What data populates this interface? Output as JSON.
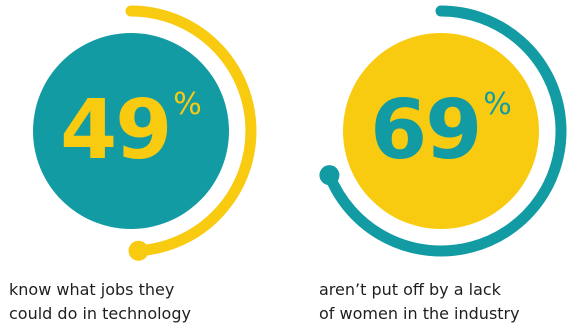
{
  "chart_data": {
    "type": "pie",
    "items": [
      {
        "value": 49,
        "number": "49",
        "unit": "%",
        "caption_line1": "know what jobs they",
        "caption_line2": "could do in technology",
        "circle_color": "#139ba4",
        "ring_color": "#f8cb11",
        "number_color": "#f8cb11"
      },
      {
        "value": 69,
        "number": "69",
        "unit": "%",
        "caption_line1": "aren’t put off by a lack",
        "caption_line2": "of women in the industry",
        "circle_color": "#f8cb11",
        "ring_color": "#139ba4",
        "number_color": "#139ba4"
      }
    ]
  }
}
